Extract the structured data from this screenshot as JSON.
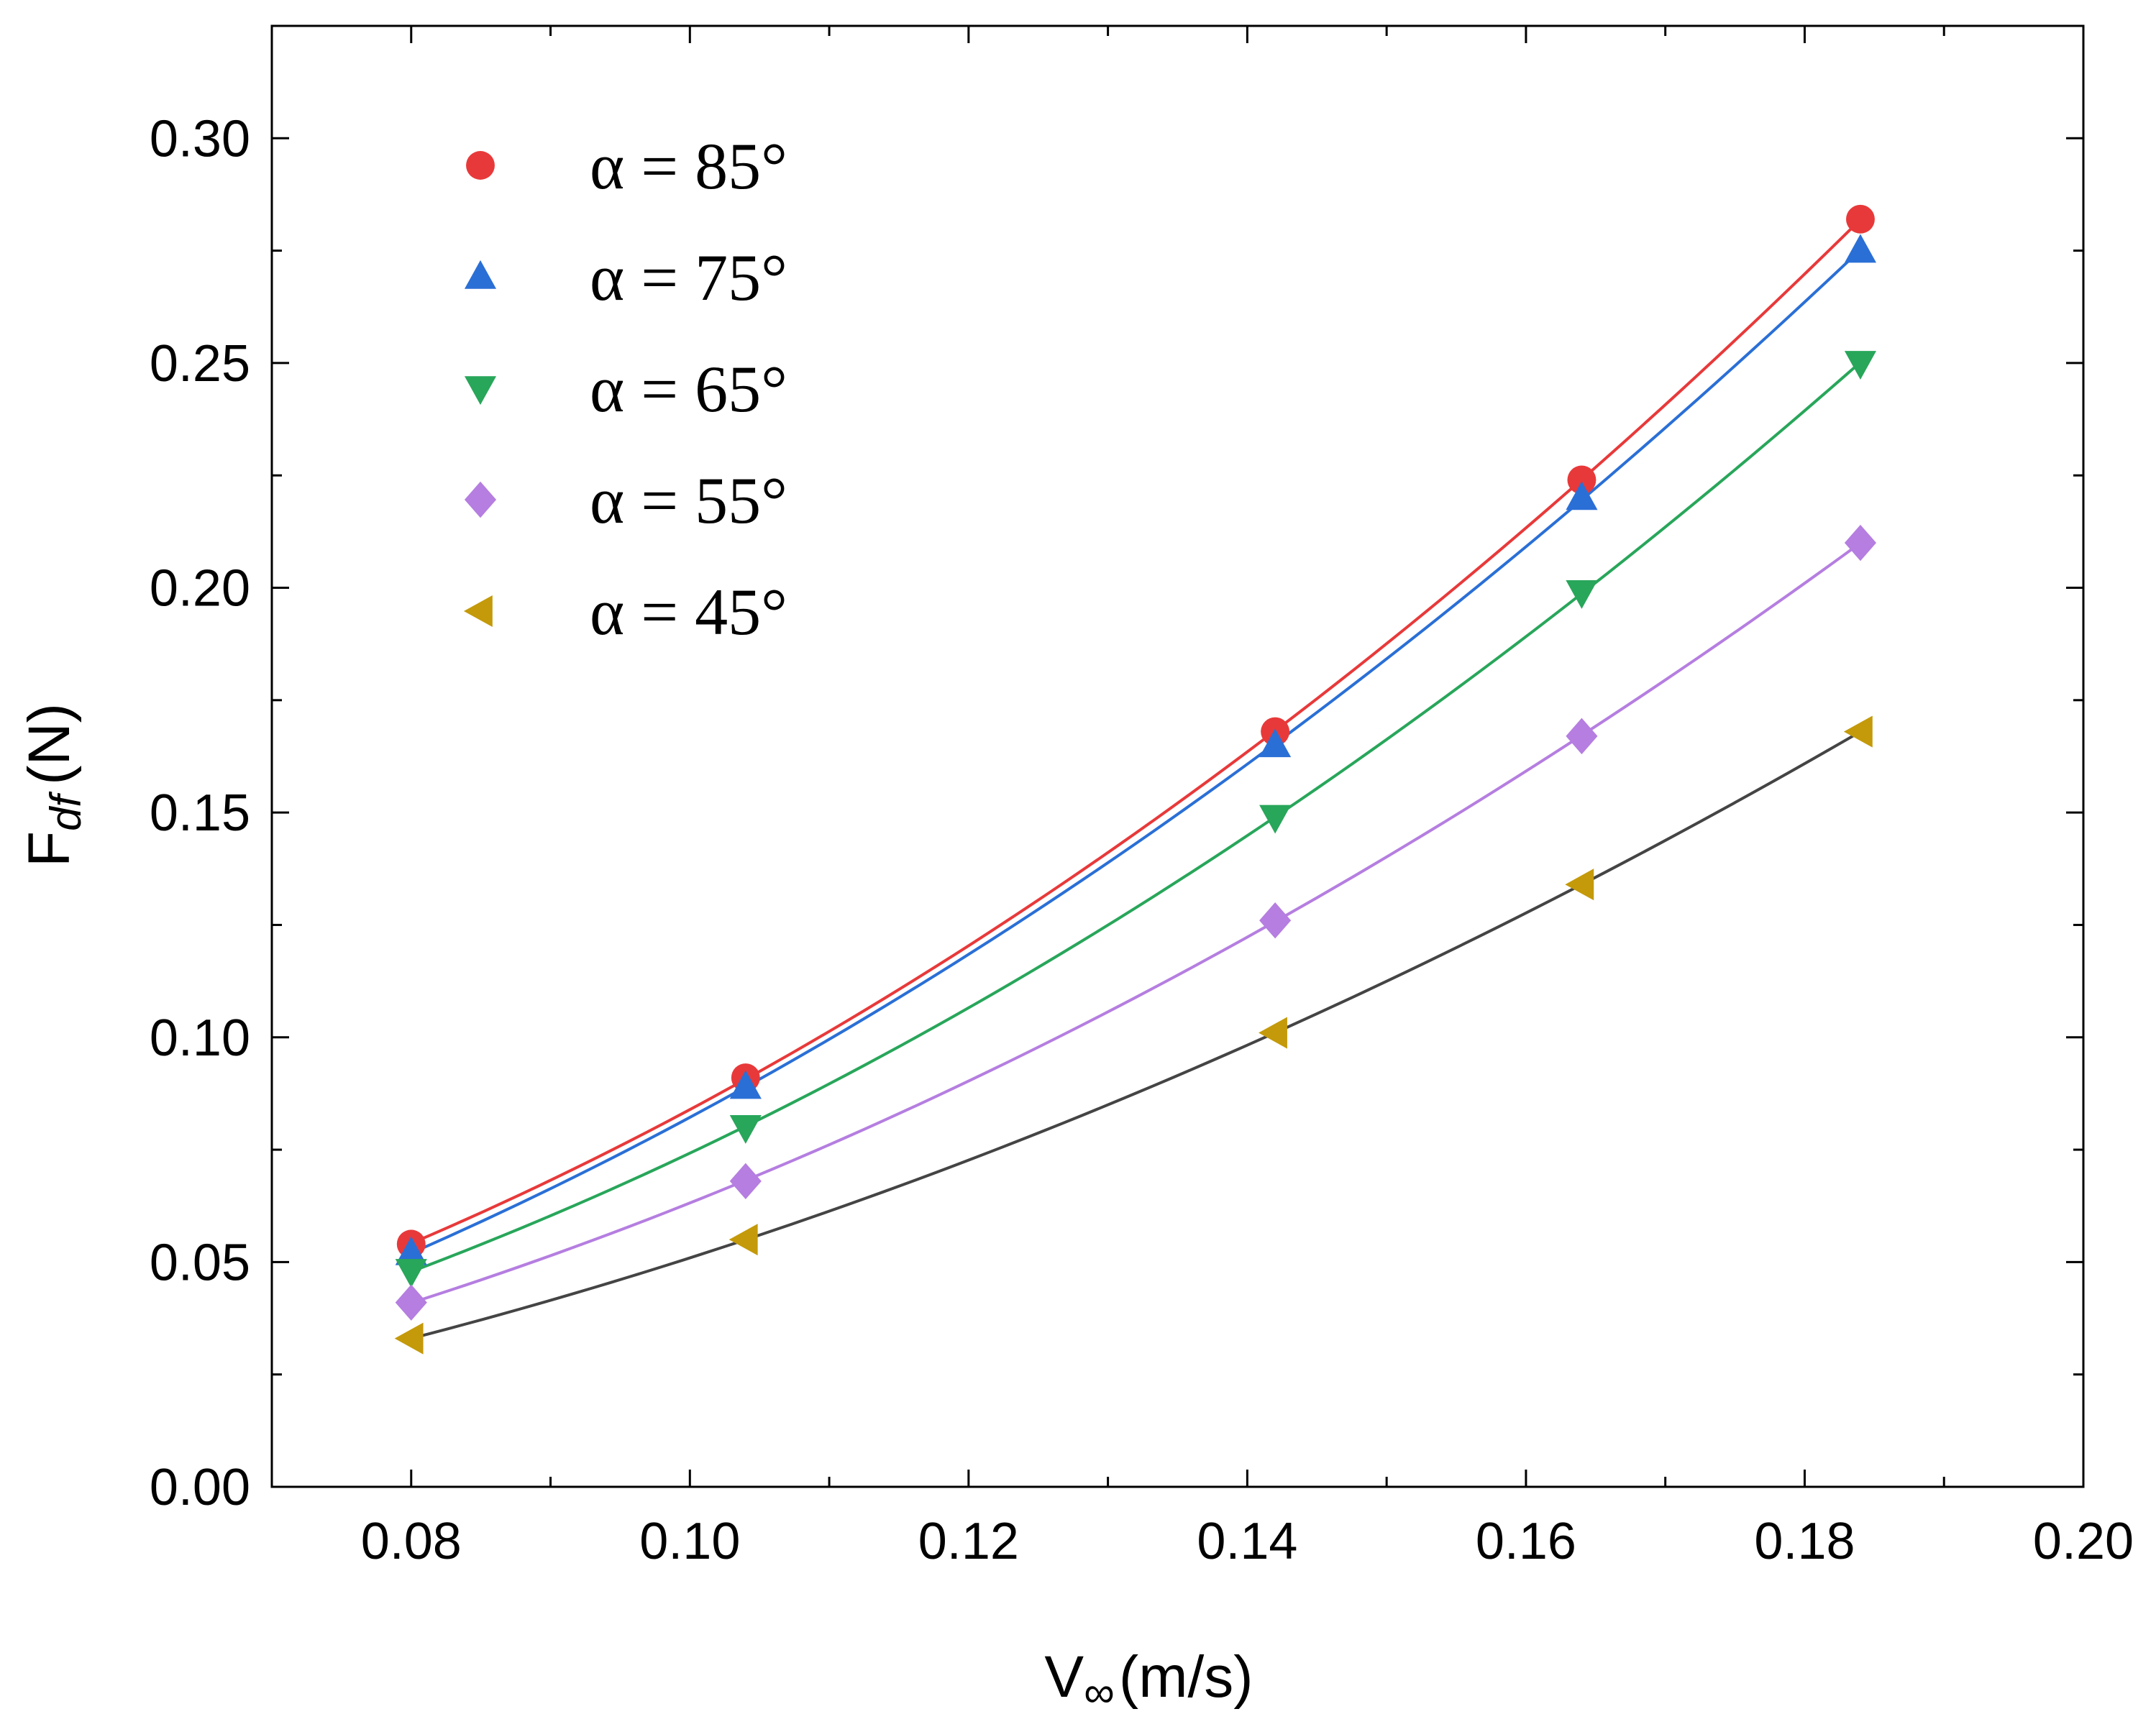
{
  "chart_data": {
    "type": "scatter",
    "title": "",
    "xlabel": "V∞(m/s)",
    "xlabel_main": "V",
    "xlabel_sub": "∞",
    "xlabel_unit": "(m/s)",
    "ylabel": "Fdf (N)",
    "ylabel_main": "F",
    "ylabel_sub": "df",
    "ylabel_unit": "(N)",
    "xlim": [
      0.07,
      0.2
    ],
    "ylim": [
      0.0,
      0.325
    ],
    "x_ticks": [
      0.08,
      0.1,
      0.12,
      0.14,
      0.16,
      0.18,
      0.2
    ],
    "x_tick_labels": [
      "0.08",
      "0.10",
      "0.12",
      "0.14",
      "0.16",
      "0.18",
      "0.20"
    ],
    "x_minor_ticks": [
      0.09,
      0.11,
      0.13,
      0.15,
      0.17,
      0.19
    ],
    "y_ticks": [
      0.0,
      0.05,
      0.1,
      0.15,
      0.2,
      0.25,
      0.3
    ],
    "y_tick_labels": [
      "0.00",
      "0.05",
      "0.10",
      "0.15",
      "0.20",
      "0.25",
      "0.30"
    ],
    "y_minor_ticks": [
      0.025,
      0.075,
      0.125,
      0.175,
      0.225,
      0.275
    ],
    "grid": false,
    "legend_position": "top-left",
    "x": [
      0.08,
      0.104,
      0.142,
      0.164,
      0.184
    ],
    "series": [
      {
        "name": "α = 85°",
        "marker": "circle",
        "color": "#e8393a",
        "line_color": "#e8393a",
        "values": [
          0.054,
          0.091,
          0.168,
          0.224,
          0.282
        ]
      },
      {
        "name": "α = 75°",
        "marker": "triangle-up",
        "color": "#2a6fd6",
        "line_color": "#2a6fd6",
        "values": [
          0.052,
          0.089,
          0.165,
          0.22,
          0.275
        ]
      },
      {
        "name": "α = 65°",
        "marker": "triangle-down",
        "color": "#28a65a",
        "line_color": "#28a65a",
        "values": [
          0.048,
          0.08,
          0.149,
          0.199,
          0.25
        ]
      },
      {
        "name": "α = 55°",
        "marker": "diamond",
        "color": "#b57ee0",
        "line_color": "#b57ee0",
        "values": [
          0.041,
          0.068,
          0.126,
          0.167,
          0.21
        ]
      },
      {
        "name": "α = 45°",
        "marker": "triangle-left",
        "color": "#c49a0a",
        "line_color": "#444444",
        "values": [
          0.033,
          0.055,
          0.101,
          0.134,
          0.168
        ]
      }
    ]
  }
}
